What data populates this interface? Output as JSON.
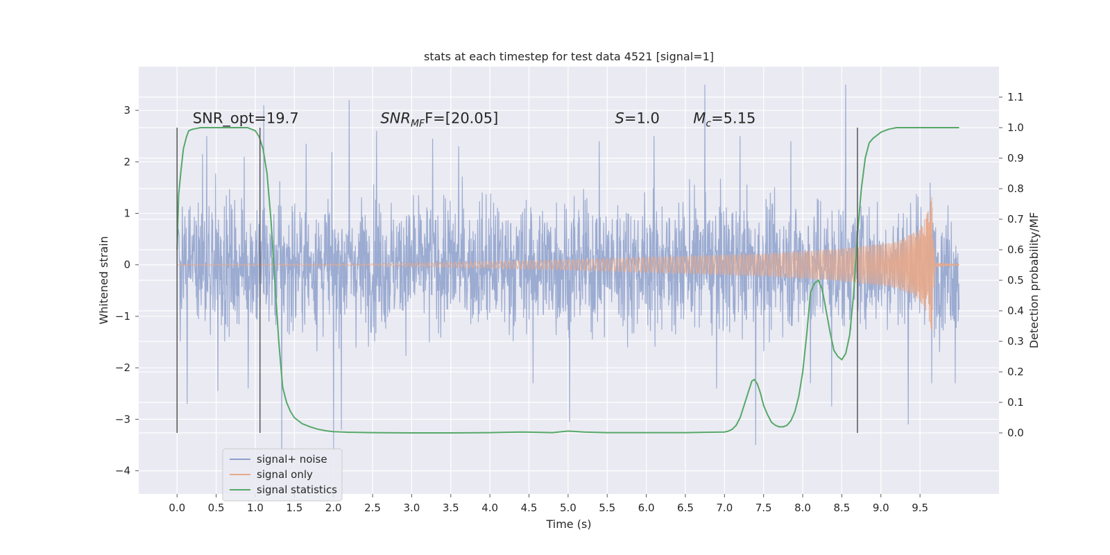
{
  "chart_data": {
    "type": "line",
    "title": "stats at each timestep for test data 4521 [signal=1]",
    "xlabel": "Time (s)",
    "ylabel_left": "Whitened strain",
    "ylabel_right": "Detection probability/MF",
    "xlim": [
      -0.49,
      10.51
    ],
    "ylim_left": [
      -4.45,
      3.85
    ],
    "ylim_right": [
      -0.2,
      1.2
    ],
    "x_ticks": [
      "0.0",
      "0.5",
      "1.0",
      "1.5",
      "2.0",
      "2.5",
      "3.0",
      "3.5",
      "4.0",
      "4.5",
      "5.0",
      "5.5",
      "6.0",
      "6.5",
      "7.0",
      "7.5",
      "8.0",
      "8.5",
      "9.0",
      "9.5"
    ],
    "x_tick_values": [
      0,
      0.5,
      1,
      1.5,
      2,
      2.5,
      3,
      3.5,
      4,
      4.5,
      5,
      5.5,
      6,
      6.5,
      7,
      7.5,
      8,
      8.5,
      9,
      9.5
    ],
    "y_left_ticks": [
      "3",
      "2",
      "1",
      "0",
      "−1",
      "−2",
      "−3",
      "−4"
    ],
    "y_left_tick_values": [
      3,
      2,
      1,
      0,
      -1,
      -2,
      -3,
      -4
    ],
    "y_right_ticks": [
      "1.1",
      "1.0",
      "0.9",
      "0.8",
      "0.7",
      "0.6",
      "0.5",
      "0.4",
      "0.3",
      "0.2",
      "0.1",
      "0.0"
    ],
    "y_right_tick_values": [
      1.1,
      1.0,
      0.9,
      0.8,
      0.7,
      0.6,
      0.5,
      0.4,
      0.3,
      0.2,
      0.1,
      0.0
    ],
    "grid": true,
    "legend_position": "lower-left",
    "annotations": [
      {
        "pre": "SNR_opt=19.7",
        "italic": "",
        "sub": "",
        "post": "",
        "x": 0.2
      },
      {
        "pre": "",
        "italic": "SNR",
        "sub": "MF",
        "post": "F=[20.05]",
        "x": 2.6
      },
      {
        "pre": "",
        "italic": "S",
        "sub": "",
        "post": "=1.0",
        "x": 5.6
      },
      {
        "pre": "",
        "italic": "M",
        "sub": "c",
        "post": "=5.15",
        "x": 6.6
      }
    ],
    "annotation_y_left": 2.75,
    "vlines": [
      {
        "x": 0.0,
        "ymin": 0.0,
        "ymax": 1.0
      },
      {
        "x": 1.06,
        "ymin": 0.0,
        "ymax": 1.0
      },
      {
        "x": 8.7,
        "ymin": 0.0,
        "ymax": 1.0
      }
    ],
    "series": [
      {
        "name": "signal+ noise",
        "axis": "left",
        "color": "#8da0cb",
        "t_start": 0.0,
        "t_end": 10.0,
        "typical_amplitude": 1.6,
        "peaks": [
          [
            0.13,
            -2.7
          ],
          [
            0.38,
            2.5
          ],
          [
            0.52,
            -2.45
          ],
          [
            0.86,
            2.1
          ],
          [
            0.91,
            -2.4
          ],
          [
            1.11,
            3.1
          ],
          [
            1.34,
            -3.7
          ],
          [
            1.65,
            2.35
          ],
          [
            2.0,
            -3.6
          ],
          [
            2.1,
            -3.2
          ],
          [
            2.2,
            3.2
          ],
          [
            2.55,
            2.6
          ],
          [
            3.27,
            2.45
          ],
          [
            3.6,
            2.3
          ],
          [
            4.55,
            -2.3
          ],
          [
            5.02,
            -3.05
          ],
          [
            5.4,
            2.4
          ],
          [
            6.1,
            2.5
          ],
          [
            6.75,
            3.5
          ],
          [
            6.9,
            -2.4
          ],
          [
            7.2,
            2.5
          ],
          [
            7.4,
            -3.5
          ],
          [
            7.85,
            2.4
          ],
          [
            8.1,
            -2.3
          ],
          [
            8.37,
            -2.75
          ],
          [
            8.55,
            3.5
          ],
          [
            9.35,
            -3.1
          ],
          [
            9.65,
            -2.3
          ],
          [
            9.95,
            -2.3
          ]
        ]
      },
      {
        "name": "signal only",
        "axis": "left",
        "color": "#e8a98a",
        "t_start": 0.0,
        "t_end": 10.0,
        "t_merger": 9.67,
        "envelope": [
          [
            0,
            0.01
          ],
          [
            2.5,
            0.02
          ],
          [
            3.5,
            0.05
          ],
          [
            5.0,
            0.1
          ],
          [
            6.5,
            0.17
          ],
          [
            7.5,
            0.22
          ],
          [
            8.5,
            0.32
          ],
          [
            9.2,
            0.45
          ],
          [
            9.5,
            0.7
          ],
          [
            9.62,
            1.1
          ],
          [
            9.66,
            1.4
          ],
          [
            9.69,
            0.05
          ],
          [
            10.0,
            0.01
          ]
        ]
      },
      {
        "name": "signal statistics",
        "axis": "right",
        "color": "#55a868",
        "x": [
          0.0,
          0.02,
          0.05,
          0.08,
          0.12,
          0.15,
          0.2,
          0.3,
          0.5,
          0.8,
          0.9,
          1.0,
          1.05,
          1.1,
          1.15,
          1.2,
          1.25,
          1.3,
          1.35,
          1.4,
          1.45,
          1.5,
          1.6,
          1.7,
          1.8,
          1.9,
          2.0,
          2.2,
          2.5,
          3.0,
          3.5,
          4.0,
          4.2,
          4.4,
          4.6,
          4.8,
          5.0,
          5.2,
          5.5,
          6.0,
          6.5,
          7.0,
          7.05,
          7.1,
          7.15,
          7.2,
          7.25,
          7.3,
          7.35,
          7.38,
          7.42,
          7.46,
          7.5,
          7.55,
          7.6,
          7.65,
          7.7,
          7.75,
          7.8,
          7.85,
          7.9,
          7.95,
          8.0,
          8.05,
          8.1,
          8.15,
          8.2,
          8.25,
          8.3,
          8.35,
          8.4,
          8.45,
          8.5,
          8.55,
          8.6,
          8.65,
          8.7,
          8.75,
          8.8,
          8.85,
          8.9,
          9.0,
          9.1,
          9.2,
          9.3,
          9.5,
          9.7,
          9.9,
          10.0
        ],
        "y": [
          0.6,
          0.78,
          0.86,
          0.93,
          0.97,
          0.99,
          0.995,
          1.0,
          1.0,
          1.0,
          1.0,
          0.99,
          0.97,
          0.93,
          0.85,
          0.7,
          0.5,
          0.3,
          0.15,
          0.1,
          0.07,
          0.05,
          0.03,
          0.02,
          0.012,
          0.007,
          0.004,
          0.002,
          0.001,
          0.0,
          0.0,
          0.001,
          0.002,
          0.003,
          0.002,
          0.001,
          0.006,
          0.003,
          0.001,
          0.001,
          0.001,
          0.003,
          0.006,
          0.012,
          0.025,
          0.05,
          0.09,
          0.13,
          0.17,
          0.175,
          0.16,
          0.13,
          0.09,
          0.06,
          0.035,
          0.025,
          0.02,
          0.02,
          0.025,
          0.04,
          0.07,
          0.12,
          0.2,
          0.32,
          0.46,
          0.49,
          0.5,
          0.47,
          0.4,
          0.33,
          0.27,
          0.25,
          0.24,
          0.26,
          0.32,
          0.45,
          0.65,
          0.8,
          0.9,
          0.95,
          0.965,
          0.985,
          0.995,
          1.0,
          1.0,
          1.0,
          1.0,
          1.0,
          1.0
        ]
      }
    ]
  }
}
